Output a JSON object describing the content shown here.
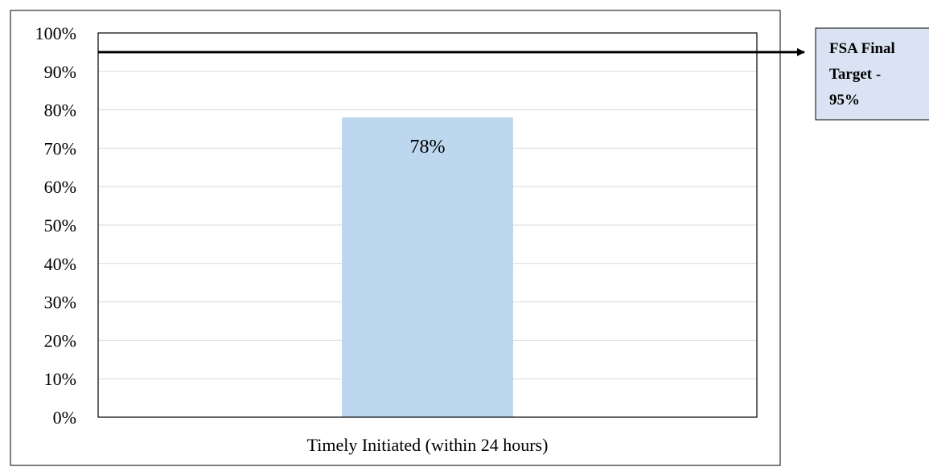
{
  "chart_data": {
    "type": "bar",
    "categories": [
      "Timely Initiated (within 24 hours)"
    ],
    "values": [
      0.78
    ],
    "data_labels": [
      "78%"
    ],
    "ylim": [
      0,
      1
    ],
    "yticks": [
      0,
      0.1,
      0.2,
      0.3,
      0.4,
      0.5,
      0.6,
      0.7,
      0.8,
      0.9,
      1.0
    ],
    "ytick_labels": [
      "0%",
      "10%",
      "20%",
      "30%",
      "40%",
      "50%",
      "60%",
      "70%",
      "80%",
      "90%",
      "100%"
    ],
    "grid": true,
    "legend": "none",
    "bar_color": "#bdd7ee",
    "reference_line": {
      "value": 0.95,
      "color": "#000000",
      "label_lines": [
        "FSA Final",
        "Target -",
        "95%"
      ],
      "label_fill": "#dae3f3"
    }
  }
}
